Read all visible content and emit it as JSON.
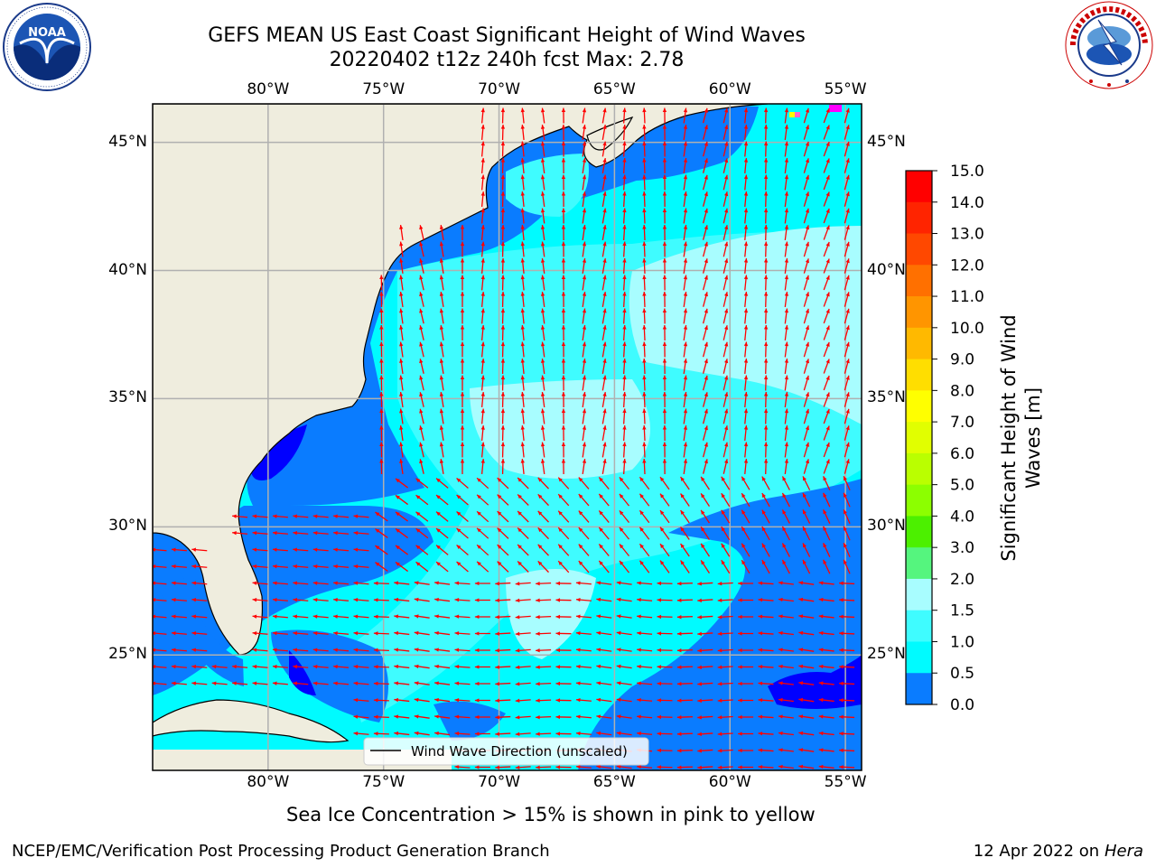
{
  "header": {
    "title_line1": "GEFS MEAN US East Coast Significant Height of Wind Waves",
    "title_line2": "20220402 t12z 240h fcst   Max: 2.78",
    "left_logo_text": "NOAA",
    "left_logo_ring": "NATIONAL OCEANIC AND ATMOSPHERIC ADMINISTRATION · U.S. DEPARTMENT OF COMMERCE",
    "right_logo_ring": "NATIONAL WEATHER SERVICE"
  },
  "map": {
    "lon_labels": [
      "80°W",
      "75°W",
      "70°W",
      "65°W",
      "60°W",
      "55°W"
    ],
    "lat_labels": [
      "45°N",
      "40°N",
      "35°N",
      "30°N",
      "25°N"
    ],
    "lon_range": [
      -85,
      -54.3
    ],
    "lat_range": [
      20.5,
      46.5
    ],
    "legend_label": "Wind Wave Direction (unscaled)",
    "colors": {
      "land": "#efedde",
      "wave_0_05": "#0000ff",
      "wave_05_1": "#0a7cff",
      "wave_1_15": "#00fbff",
      "wave_15_2": "#3ffcff",
      "wave_2_3": "#a8fdff",
      "arrow": "#ff0000",
      "grid": "#b0b0b0",
      "ice": "#ff00ff"
    }
  },
  "colorbar": {
    "label_line1": "Significant Height of Wind",
    "label_line2": "Waves [m]",
    "ticks": [
      "15.0",
      "14.0",
      "13.0",
      "12.0",
      "11.0",
      "10.0",
      "9.0",
      "8.0",
      "7.0",
      "6.0",
      "5.0",
      "4.0",
      "3.0",
      "2.0",
      "1.5",
      "1.0",
      "0.5",
      "0.0"
    ],
    "colors": [
      "#ff0000",
      "#ff2400",
      "#ff4800",
      "#ff7000",
      "#ff9500",
      "#ffb900",
      "#ffde00",
      "#ffff00",
      "#e1ff00",
      "#baff00",
      "#8cff00",
      "#4cf000",
      "#00dd00",
      "#55f57e",
      "#a8fdff",
      "#3ffcff",
      "#00fbff",
      "#0a7cff",
      "#0000ff"
    ]
  },
  "footer": {
    "ice_note": "Sea Ice Concentration > 15% is shown in pink to yellow",
    "credit": "NCEP/EMC/Verification Post Processing Product Generation Branch",
    "date_text": "12 Apr 2022 on ",
    "machine": "Hera"
  }
}
